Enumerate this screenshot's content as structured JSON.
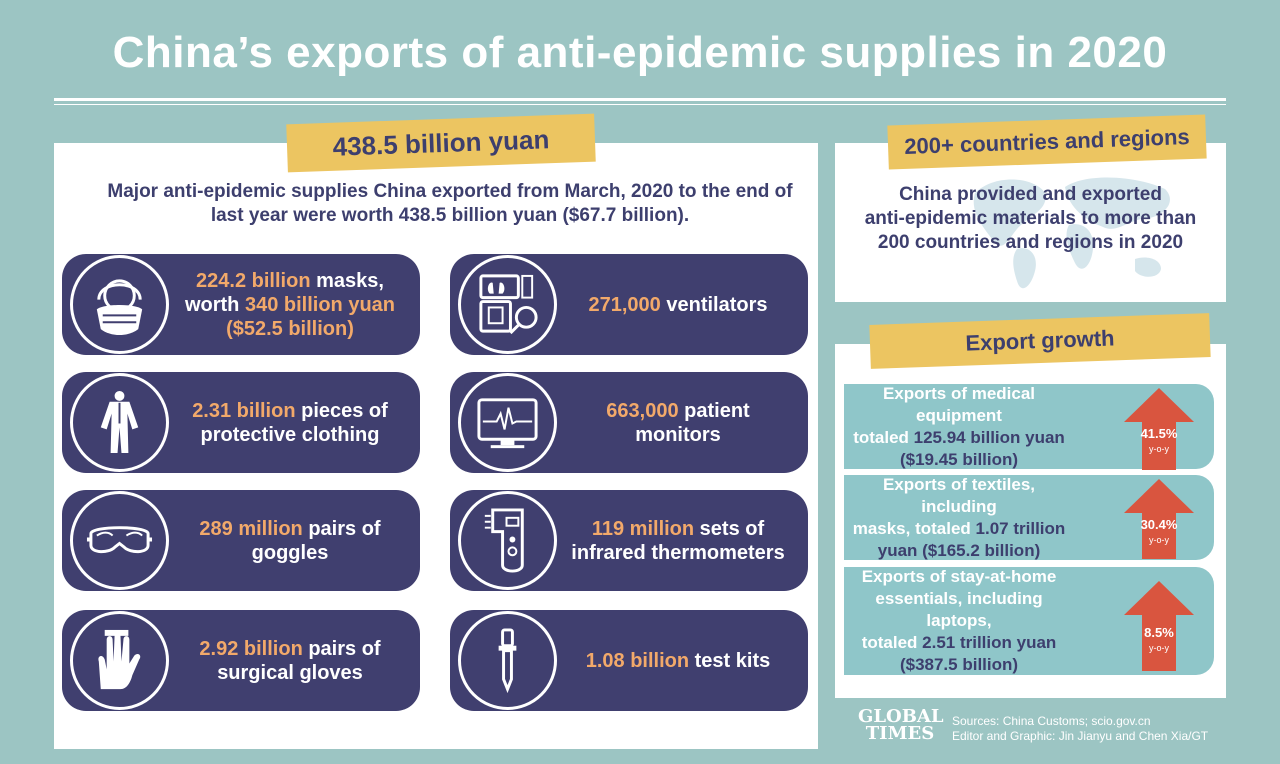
{
  "title": "China’s exports of anti-epidemic supplies in 2020",
  "left": {
    "banner": "438.5 billion yuan",
    "intro_line1": "Major anti-epidemic supplies China exported from March, 2020 to the end of",
    "intro_line2": "last year were worth 438.5 billion yuan ($67.7 billion).",
    "items": [
      {
        "icon": "mask-icon",
        "lines": [
          [
            {
              "t": "224.2 billion",
              "h": true
            },
            {
              "t": " masks,",
              "h": false
            }
          ],
          [
            {
              "t": "worth ",
              "h": false
            },
            {
              "t": "340 billion yuan",
              "h": true
            }
          ],
          [
            {
              "t": "($52.5 billion)",
              "h": true
            }
          ]
        ]
      },
      {
        "icon": "ventilator-icon",
        "lines": [
          [
            {
              "t": "271,000",
              "h": true
            },
            {
              "t": " ventilators",
              "h": false
            }
          ]
        ]
      },
      {
        "icon": "protective-suit-icon",
        "lines": [
          [
            {
              "t": "2.31 billion",
              "h": true
            },
            {
              "t": " pieces of",
              "h": false
            }
          ],
          [
            {
              "t": "protective clothing",
              "h": false
            }
          ]
        ]
      },
      {
        "icon": "patient-monitor-icon",
        "lines": [
          [
            {
              "t": "663,000",
              "h": true
            },
            {
              "t": " patient",
              "h": false
            }
          ],
          [
            {
              "t": "monitors",
              "h": false
            }
          ]
        ]
      },
      {
        "icon": "goggles-icon",
        "lines": [
          [
            {
              "t": "289 million",
              "h": true
            },
            {
              "t": " pairs of",
              "h": false
            }
          ],
          [
            {
              "t": "goggles",
              "h": false
            }
          ]
        ]
      },
      {
        "icon": "thermometer-icon",
        "lines": [
          [
            {
              "t": "119 million",
              "h": true
            },
            {
              "t": " sets of",
              "h": false
            }
          ],
          [
            {
              "t": "infrared thermometers",
              "h": false
            }
          ]
        ]
      },
      {
        "icon": "gloves-icon",
        "lines": [
          [
            {
              "t": "2.92 billion",
              "h": true
            },
            {
              "t": " pairs of",
              "h": false
            }
          ],
          [
            {
              "t": "surgical gloves",
              "h": false
            }
          ]
        ]
      },
      {
        "icon": "test-kit-icon",
        "lines": [
          [
            {
              "t": "1.08 billion",
              "h": true
            },
            {
              "t": " test kits",
              "h": false
            }
          ]
        ]
      }
    ]
  },
  "countries": {
    "banner": "200+ countries and regions",
    "line1": "China provided and exported",
    "line2": "anti-epidemic materials to more than",
    "line3": "200 countries and regions in 2020"
  },
  "growth": {
    "banner": "Export growth",
    "rows": [
      {
        "lines": [
          [
            {
              "t": "Exports of medical equipment",
              "h": false
            }
          ],
          [
            {
              "t": "totaled ",
              "h": false
            },
            {
              "t": "125.94 billion yuan",
              "h": true
            }
          ],
          [
            {
              "t": "($19.45 billion)",
              "h": true
            }
          ]
        ],
        "pct": "41.5%",
        "yoy": "y-o-y"
      },
      {
        "lines": [
          [
            {
              "t": "Exports of textiles, including",
              "h": false
            }
          ],
          [
            {
              "t": "masks, totaled ",
              "h": false
            },
            {
              "t": "1.07 trillion",
              "h": true
            }
          ],
          [
            {
              "t": "yuan ($165.2 billion)",
              "h": true
            }
          ]
        ],
        "pct": "30.4%",
        "yoy": "y-o-y"
      },
      {
        "lines": [
          [
            {
              "t": "Exports of stay-at-home",
              "h": false
            }
          ],
          [
            {
              "t": "essentials, including laptops,",
              "h": false
            }
          ],
          [
            {
              "t": "totaled ",
              "h": false
            },
            {
              "t": "2.51 trillion yuan",
              "h": true
            }
          ],
          [
            {
              "t": "($387.5 billion)",
              "h": true
            }
          ]
        ],
        "pct": "8.5%",
        "yoy": "y-o-y"
      }
    ]
  },
  "footer": {
    "logo_line1": "GLOBAL",
    "logo_line2": "TIMES",
    "sources": "Sources: China Customs; scio.gov.cn",
    "editor": "Editor and Graphic: Jin Jianyu and Chen Xia/GT"
  },
  "colors": {
    "navy": "#403f6f",
    "teal": "#9cc5c3",
    "yellow": "#ecc561",
    "orange": "#f2a96a",
    "arrow": "#d9553f"
  }
}
